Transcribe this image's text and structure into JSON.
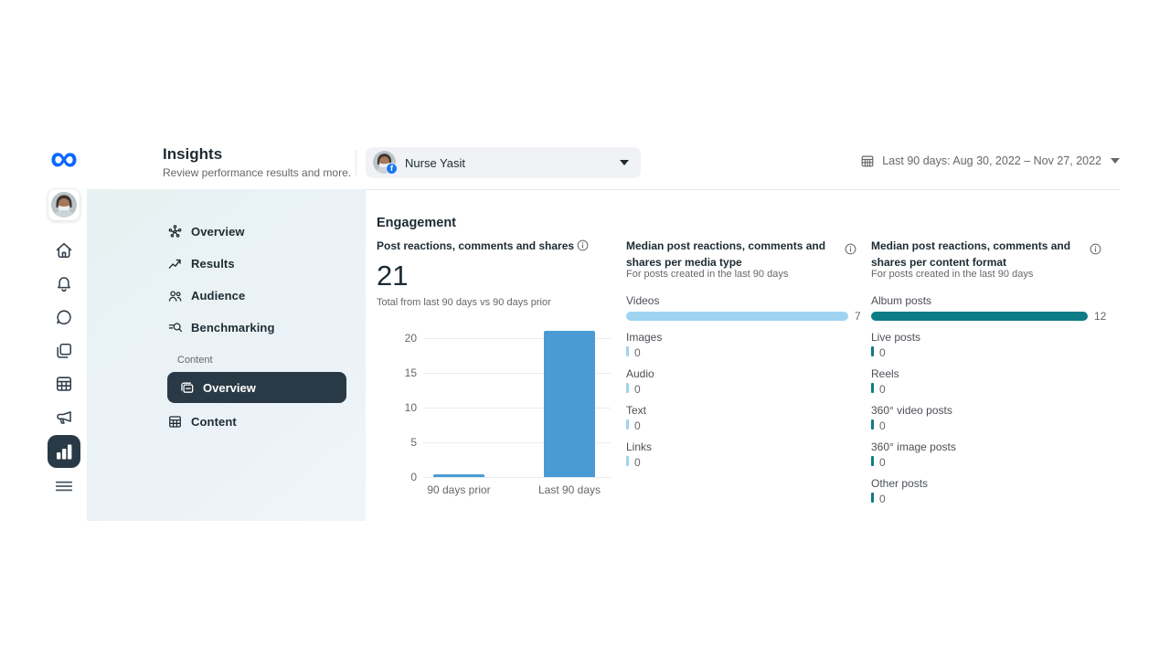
{
  "header": {
    "title": "Insights",
    "subtitle": "Review performance results and more.",
    "page_selector": {
      "name": "Nurse Yasit"
    },
    "date_range_label": "Last 90 days: Aug 30, 2022 – Nov 27, 2022"
  },
  "sidebar": {
    "items": [
      {
        "label": "Overview",
        "icon": "overview-icon"
      },
      {
        "label": "Results",
        "icon": "results-icon"
      },
      {
        "label": "Audience",
        "icon": "audience-icon"
      },
      {
        "label": "Benchmarking",
        "icon": "benchmarking-icon"
      }
    ],
    "section_label": "Content",
    "section_items": [
      {
        "label": "Overview",
        "icon": "posts-overview-icon",
        "active": true
      },
      {
        "label": "Content",
        "icon": "content-table-icon",
        "active": false
      }
    ]
  },
  "main": {
    "section_title": "Engagement"
  },
  "chart_data": [
    {
      "type": "bar",
      "title": "Post reactions, comments and shares",
      "total": "21",
      "subtitle": "Total from last 90 days vs 90 days prior",
      "categories": [
        "90 days prior",
        "Last 90 days"
      ],
      "values": [
        0.5,
        21
      ],
      "yticks": [
        0,
        5,
        10,
        15,
        20
      ],
      "ylim": [
        0,
        20
      ],
      "bar_color": "#4a9bd5"
    },
    {
      "type": "bar",
      "orientation": "horizontal",
      "title": "Median post reactions, comments and shares per media type",
      "subtitle": "For posts created in the last 90 days",
      "categories": [
        "Videos",
        "Images",
        "Audio",
        "Text",
        "Links"
      ],
      "values": [
        7,
        0,
        0,
        0,
        0
      ],
      "xlim": [
        0,
        7
      ],
      "bar_color": "#9fd3f2"
    },
    {
      "type": "bar",
      "orientation": "horizontal",
      "title": "Median post reactions, comments and shares per content format",
      "subtitle": "For posts created in the last 90 days",
      "categories": [
        "Album posts",
        "Live posts",
        "Reels",
        "360° video posts",
        "360° image posts",
        "Other posts"
      ],
      "values": [
        12,
        0,
        0,
        0,
        0,
        0
      ],
      "xlim": [
        0,
        12
      ],
      "bar_color": "#0e7c86"
    }
  ]
}
